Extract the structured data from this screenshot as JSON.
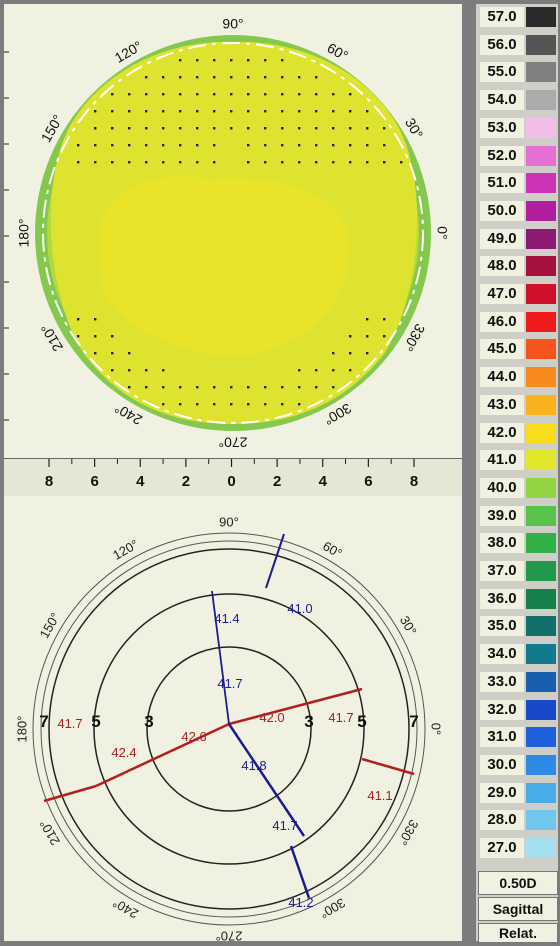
{
  "top_map": {
    "angle_labels": [
      {
        "text": "90°",
        "angle": 90
      },
      {
        "text": "60°",
        "angle": 60
      },
      {
        "text": "30°",
        "angle": 30
      },
      {
        "text": "0°",
        "angle": 0
      },
      {
        "text": "330°",
        "angle": 330
      },
      {
        "text": "300°",
        "angle": 300
      },
      {
        "text": "270°",
        "angle": 270
      },
      {
        "text": "240°",
        "angle": 240
      },
      {
        "text": "210°",
        "angle": 210
      },
      {
        "text": "180°",
        "angle": 180
      },
      {
        "text": "150°",
        "angle": 150
      },
      {
        "text": "120°",
        "angle": 120
      }
    ],
    "colors": {
      "outer": "#84c94e",
      "mid": "#b4d93c",
      "main": "#dde32e",
      "center": "#e9e42a",
      "ring": "#ffffff"
    }
  },
  "x_axis": {
    "ticks": [
      "8",
      "6",
      "4",
      "2",
      "0",
      "2",
      "4",
      "6",
      "8"
    ]
  },
  "bottom_map": {
    "angle_labels": [
      {
        "text": "90°",
        "angle": 90
      },
      {
        "text": "60°",
        "angle": 60
      },
      {
        "text": "30°",
        "angle": 30
      },
      {
        "text": "0°",
        "angle": 0
      },
      {
        "text": "330°",
        "angle": 330
      },
      {
        "text": "300°",
        "angle": 300
      },
      {
        "text": "270°",
        "angle": 270
      },
      {
        "text": "240°",
        "angle": 240
      },
      {
        "text": "210°",
        "angle": 210
      },
      {
        "text": "180°",
        "angle": 180
      },
      {
        "text": "150°",
        "angle": 150
      },
      {
        "text": "120°",
        "angle": 120
      }
    ],
    "ring_labels": {
      "left": [
        "7",
        "5",
        "3"
      ],
      "right": [
        "3",
        "5",
        "7"
      ]
    },
    "readings": [
      {
        "text": "41.0",
        "color": "#1c1c8c"
      },
      {
        "text": "41.4",
        "color": "#1c1c8c"
      },
      {
        "text": "41.7",
        "color": "#1c1c8c"
      },
      {
        "text": "42.6",
        "color": "#aa1e1e"
      },
      {
        "text": "42.0",
        "color": "#aa1e1e"
      },
      {
        "text": "41.7",
        "color": "#aa1e1e"
      },
      {
        "text": "41.7",
        "color": "#aa1e1e"
      },
      {
        "text": "42.4",
        "color": "#aa1e1e"
      },
      {
        "text": "41.1",
        "color": "#aa1e1e"
      },
      {
        "text": "41.8",
        "color": "#1c1c8c"
      },
      {
        "text": "41.7",
        "color": "#1c1c8c"
      },
      {
        "text": "41.2",
        "color": "#1c1c8c"
      }
    ],
    "colors": {
      "steep_axis": "#b41e1e",
      "flat_axis": "#1c1c8c"
    }
  },
  "scale": {
    "entries": [
      {
        "label": "57.0",
        "color": "#2a2a2a"
      },
      {
        "label": "56.0",
        "color": "#555555"
      },
      {
        "label": "55.0",
        "color": "#808080"
      },
      {
        "label": "54.0",
        "color": "#ababab"
      },
      {
        "label": "53.0",
        "color": "#f2bde6"
      },
      {
        "label": "52.0",
        "color": "#e46fd0"
      },
      {
        "label": "51.0",
        "color": "#cc33b8"
      },
      {
        "label": "50.0",
        "color": "#b01fa0"
      },
      {
        "label": "49.0",
        "color": "#8c1a72"
      },
      {
        "label": "48.0",
        "color": "#a5103c"
      },
      {
        "label": "47.0",
        "color": "#d0102a"
      },
      {
        "label": "46.0",
        "color": "#f01a1a"
      },
      {
        "label": "45.0",
        "color": "#f5551d"
      },
      {
        "label": "44.0",
        "color": "#f68a1e"
      },
      {
        "label": "43.0",
        "color": "#f7b21e"
      },
      {
        "label": "42.0",
        "color": "#f8dc1e"
      },
      {
        "label": "41.0",
        "color": "#dfe82a"
      },
      {
        "label": "40.0",
        "color": "#93d444"
      },
      {
        "label": "39.0",
        "color": "#58c34a"
      },
      {
        "label": "38.0",
        "color": "#33b04a"
      },
      {
        "label": "37.0",
        "color": "#22984a"
      },
      {
        "label": "36.0",
        "color": "#17804a"
      },
      {
        "label": "35.0",
        "color": "#117068"
      },
      {
        "label": "34.0",
        "color": "#127a8c"
      },
      {
        "label": "33.0",
        "color": "#1660ae"
      },
      {
        "label": "32.0",
        "color": "#1a48c8"
      },
      {
        "label": "31.0",
        "color": "#2060dc"
      },
      {
        "label": "30.0",
        "color": "#2f8ae6"
      },
      {
        "label": "29.0",
        "color": "#47ace8"
      },
      {
        "label": "28.0",
        "color": "#70c6ec"
      },
      {
        "label": "27.0",
        "color": "#a6def2"
      }
    ],
    "step": "0.50D",
    "mode": "Sagittal",
    "scale_type": "Relat."
  }
}
